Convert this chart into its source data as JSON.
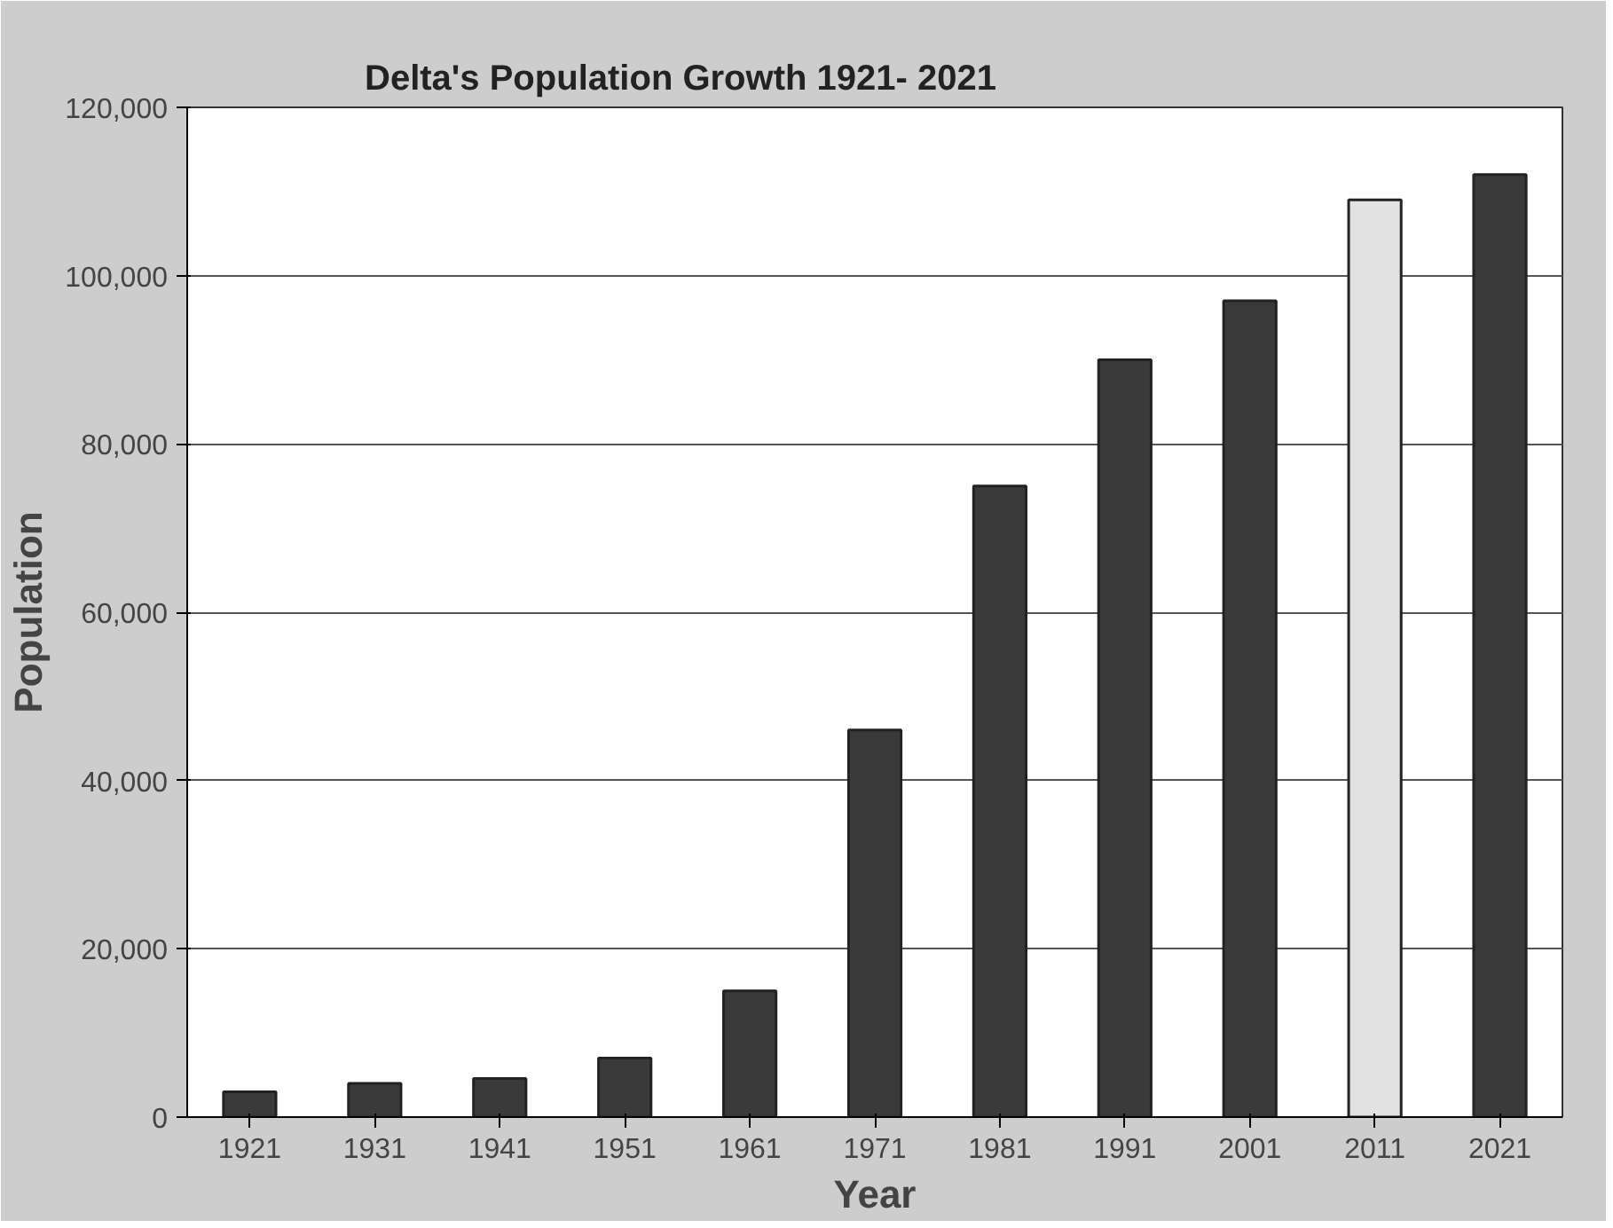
{
  "chart_data": {
    "type": "bar",
    "title": "Delta's Population Growth 1921- 2021",
    "xlabel": "Year",
    "ylabel": "Population",
    "categories": [
      "1921",
      "1931",
      "1941",
      "1951",
      "1961",
      "1971",
      "1981",
      "1991",
      "2001",
      "2011",
      "2021"
    ],
    "values": [
      3000,
      4000,
      4600,
      7000,
      15000,
      46000,
      75000,
      90000,
      97000,
      109000,
      112000
    ],
    "colors": [
      "#3a3a3a",
      "#3a3a3a",
      "#3a3a3a",
      "#3a3a3a",
      "#3a3a3a",
      "#3a3a3a",
      "#3a3a3a",
      "#3a3a3a",
      "#3a3a3a",
      "#e2e2e2",
      "#3a3a3a"
    ],
    "ylim": [
      0,
      120000
    ],
    "yticks": [
      {
        "value": 0,
        "label": "0"
      },
      {
        "value": 20000,
        "label": "20,000"
      },
      {
        "value": 40000,
        "label": "40,000"
      },
      {
        "value": 60000,
        "label": "60,000"
      },
      {
        "value": 80000,
        "label": "80,000"
      },
      {
        "value": 100000,
        "label": "100,000"
      },
      {
        "value": 120000,
        "label": "120,000"
      }
    ],
    "grid": "y"
  }
}
